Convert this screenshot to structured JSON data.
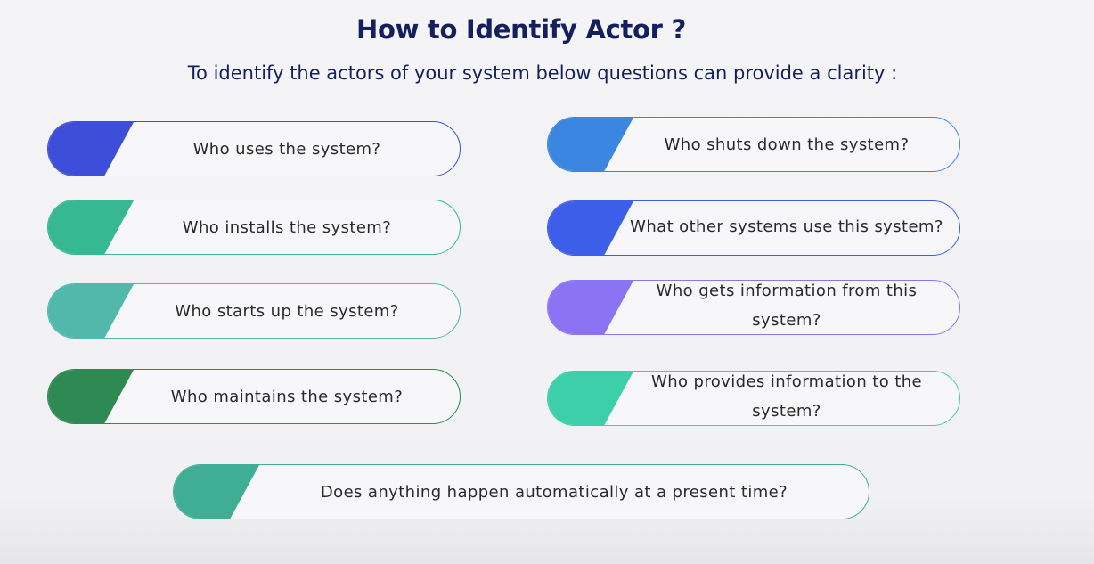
{
  "title": "How to Identify Actor ?",
  "subtitle": "To identify the actors of your system below questions can provide a clarity :",
  "questions": [
    {
      "text": "Who uses the system?",
      "color": "#3d4fd8"
    },
    {
      "text": "Who installs the system?",
      "color": "#36b892"
    },
    {
      "text": "Who starts up the system?",
      "color": "#52b8ac"
    },
    {
      "text": "Who maintains the system?",
      "color": "#2e8a52"
    },
    {
      "text": "Who shuts down the system?",
      "color": "#3a86e0"
    },
    {
      "text": "What other systems use this system?",
      "color": "#3d5ee8"
    },
    {
      "text": "Who gets information from this system?",
      "color": "#8a74f4"
    },
    {
      "text": "Who provides information to the system?",
      "color": "#3ccfaa"
    },
    {
      "text": "Does anything happen automatically at a present time?",
      "color": "#3fae94"
    }
  ]
}
